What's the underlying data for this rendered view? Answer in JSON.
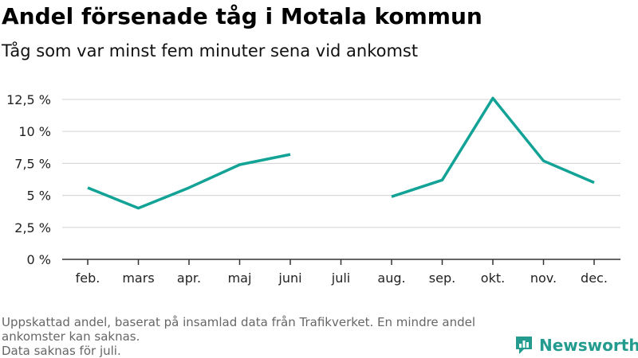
{
  "title": "Andel försenade tåg i Motala kommun",
  "subtitle": "Tåg som var minst fem minuter sena vid ankomst",
  "footnote": {
    "line1": "Uppskattad andel, baserat på insamlad data från Trafikverket. En mindre andel",
    "line2": "ankomster kan saknas.",
    "line3": "Data saknas för juli."
  },
  "brand": {
    "name": "Newsworthy",
    "icon": "newsworthy-logo-icon"
  },
  "colors": {
    "line": "#12a396",
    "grid": "#d9d9d9",
    "axis": "#333333",
    "brand": "#239b8f"
  },
  "chart_data": {
    "type": "line",
    "title": "Andel försenade tåg i Motala kommun",
    "subtitle": "Tåg som var minst fem minuter sena vid ankomst",
    "xlabel": "",
    "ylabel": "",
    "categories": [
      "feb.",
      "mars",
      "apr.",
      "maj",
      "juni",
      "juli",
      "aug.",
      "sep.",
      "okt.",
      "nov.",
      "dec."
    ],
    "series": [
      {
        "values": [
          5.6,
          4.0,
          5.6,
          7.4,
          8.2,
          null,
          4.9,
          6.2,
          12.6,
          7.7,
          6.0
        ]
      }
    ],
    "yticks": [
      {
        "value": 0,
        "label": "0 %"
      },
      {
        "value": 2.5,
        "label": "2,5 %"
      },
      {
        "value": 5,
        "label": "5 %"
      },
      {
        "value": 7.5,
        "label": "7,5 %"
      },
      {
        "value": 10,
        "label": "10 %"
      },
      {
        "value": 12.5,
        "label": "12,5 %"
      }
    ],
    "ylim": [
      0,
      12.5
    ],
    "grid": true,
    "legend": "none"
  }
}
